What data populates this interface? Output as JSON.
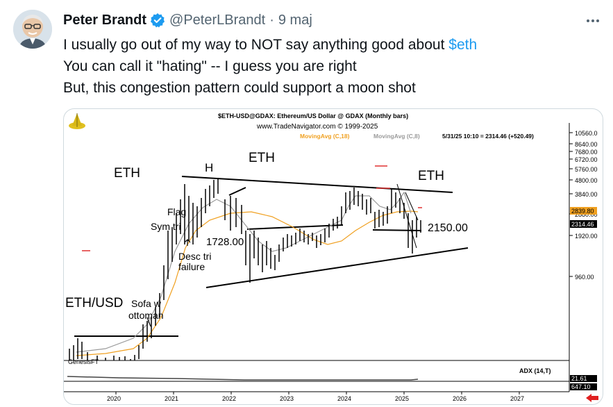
{
  "author": {
    "name": "Peter Brandt",
    "handle": "@PeterLBrandt",
    "separator": "·",
    "date": "9 maj"
  },
  "icons": {
    "verified": "verified-badge-icon",
    "more": "more-options-icon"
  },
  "colors": {
    "accent": "#1d9bf0",
    "muted": "#536471"
  },
  "tweet": {
    "line1_text": "I usually go out of my way to NOT say anything good about ",
    "line1_cashtag": "$eth",
    "line2": "You can call it \"hating\" -- I guess you are right",
    "line3": "But, this congestion pattern could support a moon shot"
  },
  "chart": {
    "header_title": "$ETH-USD@GDAX:  Ethereum/US Dollar @ GDAX  (Monthly bars)",
    "header_site": "www.TradeNavigator.com © 1999-2025",
    "ma1": "MovingAvg (C,18)",
    "ma2": "MovingAvg (C,8)",
    "info": "5/31/25 10:10 = 2314.46 (+520.49)",
    "price_labels": [
      "10560.0",
      "8640.00",
      "7680.00",
      "6720.00",
      "5760.00",
      "4800.00",
      "3840.00",
      "2880.00",
      "1920.00",
      "960.00"
    ],
    "badge_1": "2839.80",
    "badge_2": "2314.46",
    "years": [
      "2020",
      "2021",
      "2022",
      "2023",
      "2024",
      "2025",
      "2026",
      "2027"
    ],
    "ann_eth_left": "ETH",
    "ann_h": "H",
    "ann_eth_mid": "ETH",
    "ann_eth_right": "ETH",
    "ann_flag": "Flag",
    "ann_sym": "Sym tri",
    "ann_1728": "1728.00",
    "ann_desc1": "Desc tri",
    "ann_desc2": "failure",
    "ann_2150": "2150.00",
    "ann_ethusd": "ETH/USD",
    "ann_sofa1": "Sofa w",
    "ann_sofa2": "ottoman",
    "ann_genesis": "GenesisFT",
    "adx_label": "ADX (14,T)",
    "adx_val1": "21.61",
    "adx_val2": "647.10"
  }
}
